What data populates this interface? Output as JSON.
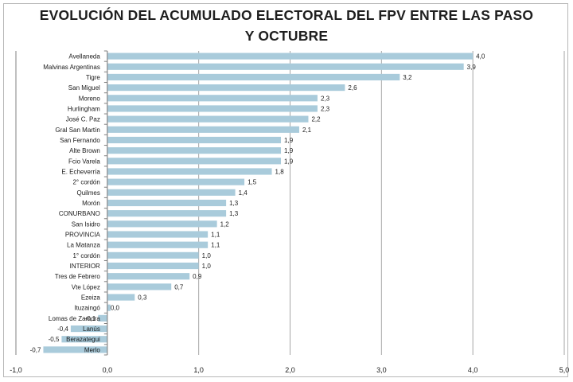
{
  "chart_data": {
    "type": "bar",
    "orientation": "horizontal",
    "title": [
      "EVOLUCIÓN DEL ACUMULADO ELECTORAL DEL FPV ENTRE LAS PASO",
      "Y OCTUBRE"
    ],
    "categories": [
      "Avellaneda",
      "Malvinas Argentinas",
      "Tigre",
      "San Miguel",
      "Moreno",
      "Hurlingham",
      "José C. Paz",
      "Gral San Martín",
      "San Fernando",
      "Alte Brown",
      "Fcio Varela",
      "E. Echeverría",
      "2° cordón",
      "Quilmes",
      "Morón",
      "CONURBANO",
      "San Isidro",
      "PROVINCIA",
      "La Matanza",
      "1° cordón",
      "INTERIOR",
      "Tres de Febrero",
      "Vte López",
      "Ezeiza",
      "Ituzaingó",
      "Lomas de Zamora",
      "Lanús",
      "Berazategui",
      "Merlo"
    ],
    "values": [
      4.0,
      3.9,
      3.2,
      2.6,
      2.3,
      2.3,
      2.2,
      2.1,
      1.9,
      1.9,
      1.9,
      1.8,
      1.5,
      1.4,
      1.3,
      1.3,
      1.2,
      1.1,
      1.1,
      1.0,
      1.0,
      0.9,
      0.7,
      0.3,
      0.0,
      -0.1,
      -0.4,
      -0.5,
      -0.7
    ],
    "value_labels": [
      "4,0",
      "3,9",
      "3,2",
      "2,6",
      "2,3",
      "2,3",
      "2,2",
      "2,1",
      "1,9",
      "1,9",
      "1,9",
      "1,8",
      "1,5",
      "1,4",
      "1,3",
      "1,3",
      "1,2",
      "1,1",
      "1,1",
      "1,0",
      "1,0",
      "0,9",
      "0,7",
      "0,3",
      "0,0",
      "-0,1",
      "-0,4",
      "-0,5",
      "-0,7"
    ],
    "x_ticks": [
      -1.0,
      0.0,
      1.0,
      2.0,
      3.0,
      4.0,
      5.0
    ],
    "x_tick_labels": [
      "-1,0",
      "0,0",
      "1,0",
      "2,0",
      "3,0",
      "4,0",
      "5,0"
    ],
    "xlim": [
      -1.0,
      5.0
    ],
    "grid": "vertical major",
    "legend": "none",
    "colors": {
      "bar": "#a9cbdb",
      "grid": "#a6a6a6",
      "axis": "#808080"
    }
  }
}
